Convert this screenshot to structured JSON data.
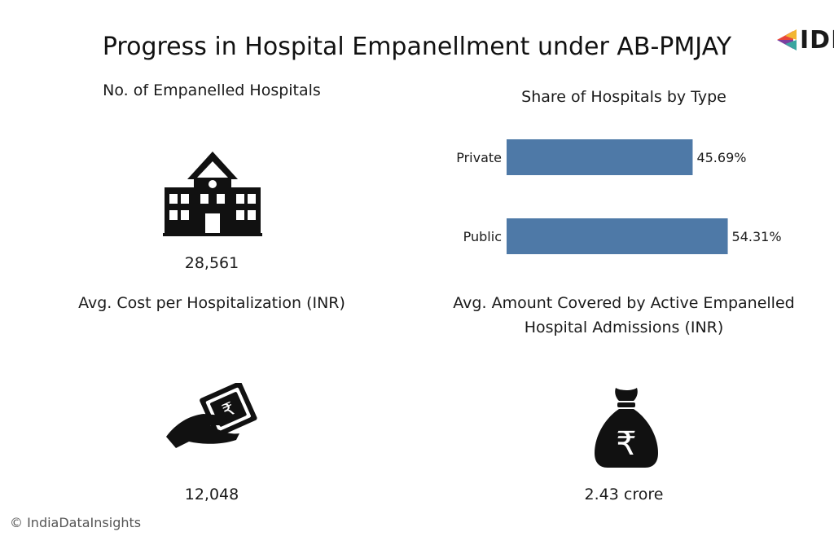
{
  "title": "Progress in Hospital Empanellment under AB-PMJAY",
  "logo_text": "IDI",
  "panels": {
    "hospitals": {
      "title": "No. of Empanelled Hospitals",
      "value": "28,561",
      "icon": "hospital-building-icon"
    },
    "cost": {
      "title": "Avg. Cost per Hospitalization (INR)",
      "value": "12,048",
      "icon": "hand-with-rupee-notes-icon"
    },
    "amount": {
      "title_line1": "Avg.  Amount Covered by Active Empanelled",
      "title_line2": "Hospital Admissions (INR)",
      "value": "2.43 crore",
      "icon": "rupee-money-bag-icon"
    }
  },
  "footer": "© IndiaDataInsights",
  "colors": {
    "bar": "#4e79a7",
    "icon": "#111111"
  },
  "chart_data": {
    "type": "bar",
    "orientation": "horizontal",
    "title": "Share of Hospitals by Type",
    "categories": [
      "Private",
      "Public"
    ],
    "values": [
      45.69,
      54.31
    ],
    "value_labels": [
      "45.69%",
      "54.31%"
    ],
    "xlim": [
      0,
      60
    ],
    "grid": false
  }
}
